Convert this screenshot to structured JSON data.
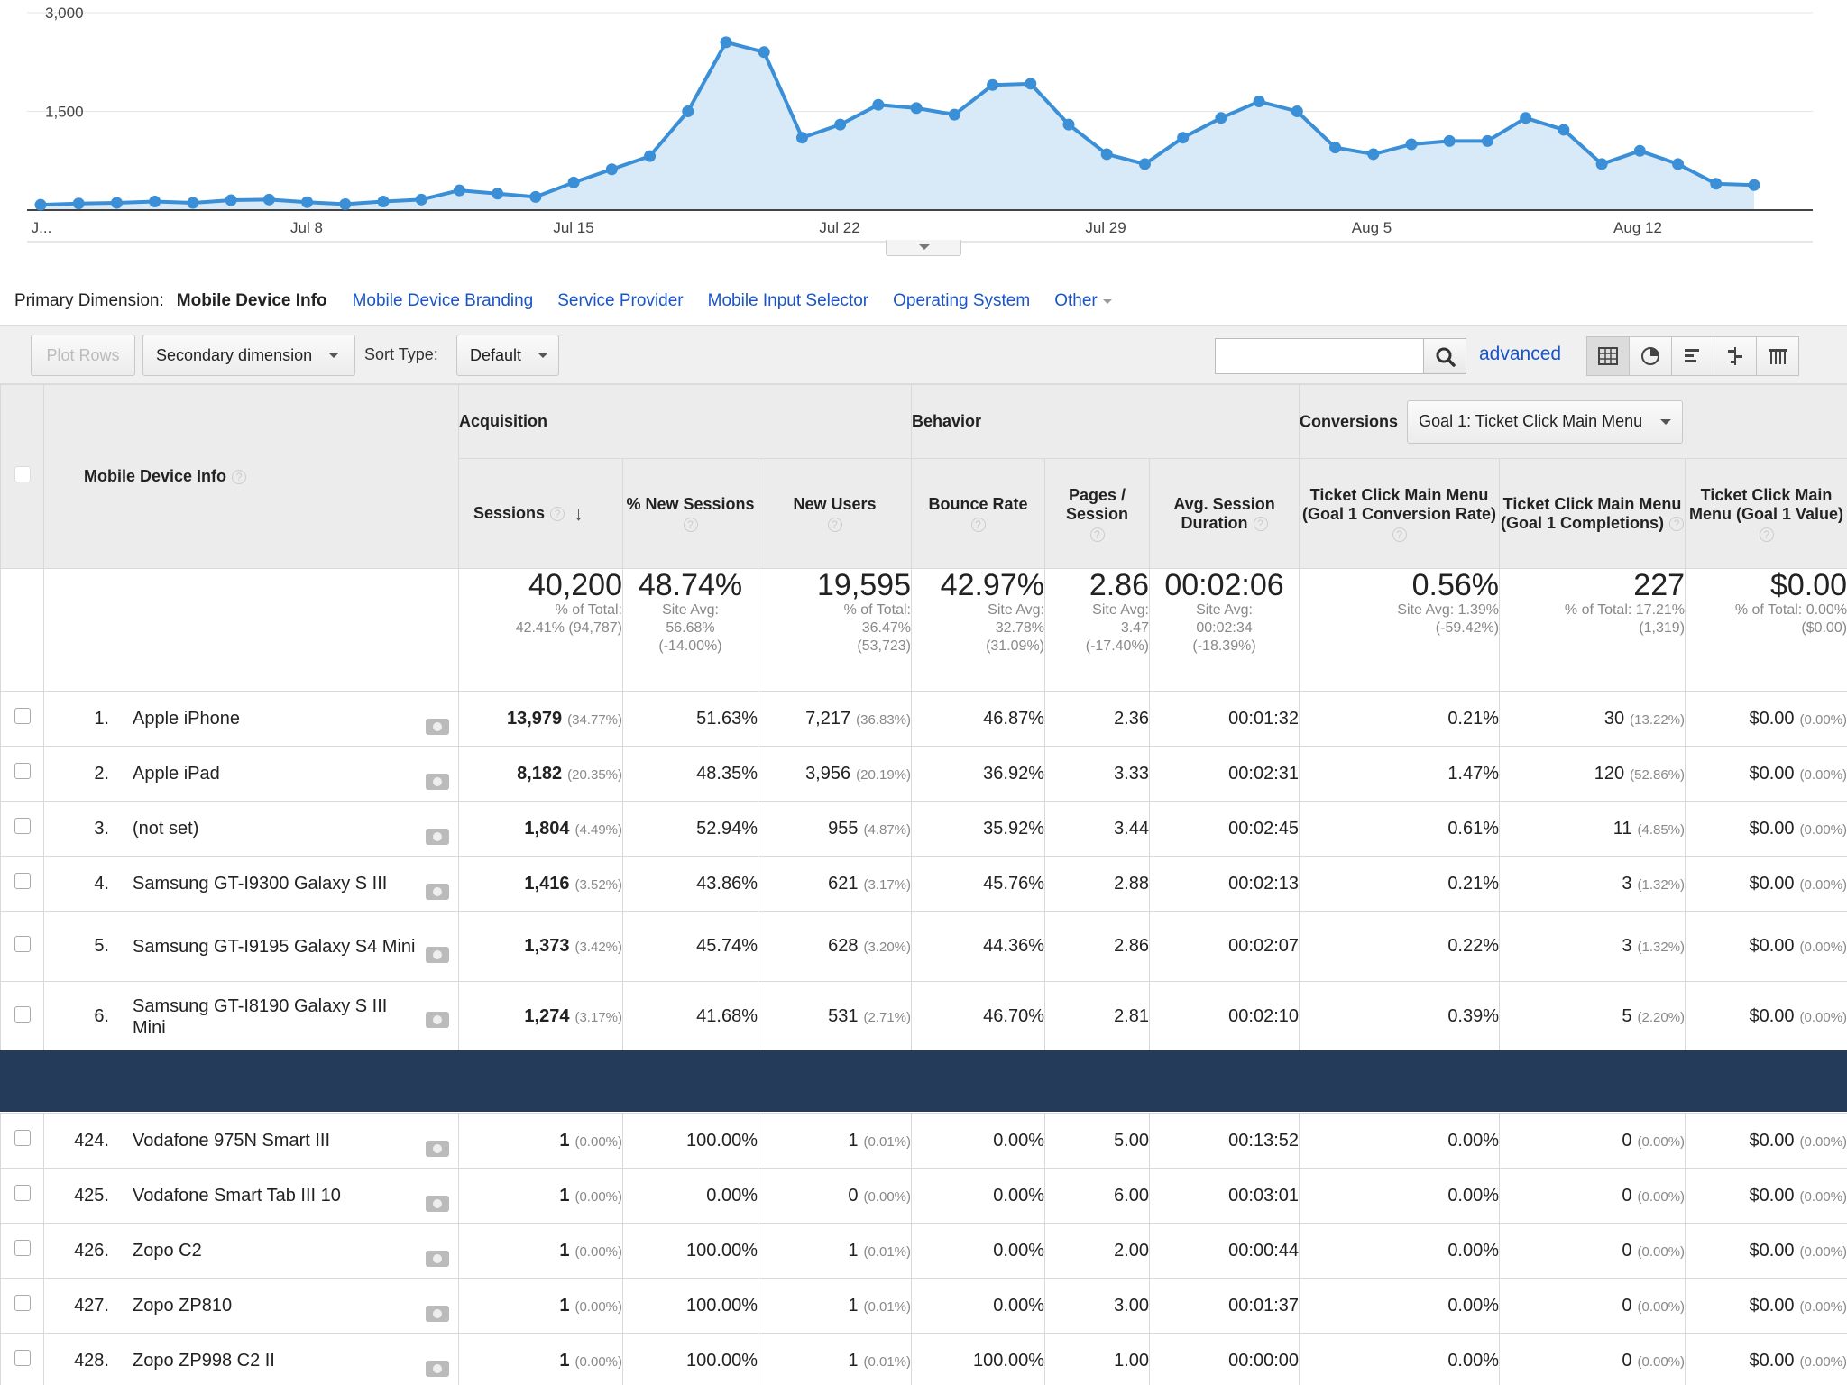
{
  "chart": {
    "y_ticks": [
      "3,000",
      "1,500"
    ],
    "x_labels": [
      "J...",
      "Jul 8",
      "Jul 15",
      "Jul 22",
      "Jul 29",
      "Aug 5",
      "Aug 12"
    ],
    "series": [
      80,
      100,
      110,
      130,
      110,
      150,
      160,
      120,
      90,
      130,
      160,
      300,
      250,
      200,
      420,
      620,
      820,
      1500,
      2550,
      2400,
      1100,
      1300,
      1600,
      1550,
      1450,
      1900,
      1920,
      1300,
      850,
      700,
      1100,
      1400,
      1650,
      1500,
      950,
      850,
      1000,
      1050,
      1050,
      1400,
      1220,
      700,
      900,
      700,
      400,
      380
    ],
    "line_color": "#3a8fd6",
    "fill_color": "#d8eaf8"
  },
  "primary_dimension": {
    "label": "Primary Dimension:",
    "active": "Mobile Device Info",
    "links": [
      "Mobile Device Branding",
      "Service Provider",
      "Mobile Input Selector",
      "Operating System"
    ],
    "other": "Other"
  },
  "toolbar": {
    "plot_rows": "Plot Rows",
    "secondary_dimension": "Secondary dimension",
    "sort_type_label": "Sort Type:",
    "sort_type_value": "Default",
    "search_placeholder": "",
    "advanced": "advanced",
    "view_icons": [
      "table-view-icon",
      "pie-view-icon",
      "performance-view-icon",
      "comparison-view-icon",
      "pivot-view-icon"
    ]
  },
  "table": {
    "dim_header": "Mobile Device Info",
    "groups": {
      "acquisition": "Acquisition",
      "behavior": "Behavior",
      "conversions": "Conversions",
      "goal_select": "Goal 1: Ticket Click Main Menu"
    },
    "columns": {
      "sessions": "Sessions",
      "pct_new": "% New Sessions",
      "new_users": "New Users",
      "bounce": "Bounce Rate",
      "pages": "Pages / Session",
      "avg_dur": "Avg. Session Duration",
      "conv_rate": "Ticket Click Main Menu (Goal 1 Conversion Rate)",
      "completions": "Ticket Click Main Menu (Goal 1 Completions)",
      "value": "Ticket Click Main Menu (Goal 1 Value)"
    },
    "totals": {
      "sessions": {
        "big": "40,200",
        "l1": "% of Total:",
        "l2": "42.41% (94,787)"
      },
      "pct_new": {
        "big": "48.74%",
        "l1": "Site Avg:",
        "l2": "56.68%",
        "l3": "(-14.00%)"
      },
      "new_users": {
        "big": "19,595",
        "l1": "% of Total:",
        "l2": "36.47%",
        "l3": "(53,723)"
      },
      "bounce": {
        "big": "42.97%",
        "l1": "Site Avg:",
        "l2": "32.78%",
        "l3": "(31.09%)"
      },
      "pages": {
        "big": "2.86",
        "l1": "Site Avg:",
        "l2": "3.47",
        "l3": "(-17.40%)"
      },
      "avg_dur": {
        "big": "00:02:06",
        "l1": "Site Avg:",
        "l2": "00:02:34",
        "l3": "(-18.39%)"
      },
      "conv_rate": {
        "big": "0.56%",
        "l1": "Site Avg: 1.39%",
        "l2": "(-59.42%)"
      },
      "completions": {
        "big": "227",
        "l1": "% of Total: 17.21%",
        "l2": "(1,319)"
      },
      "value": {
        "big": "$0.00",
        "l1": "% of Total: 0.00%",
        "l2": "($0.00)"
      }
    },
    "rows_top": [
      {
        "rank": "1.",
        "name": "Apple iPhone",
        "sessions": "13,979",
        "sessions_pct": "(34.77%)",
        "pct_new": "51.63%",
        "new_users": "7,217",
        "new_users_pct": "(36.83%)",
        "bounce": "46.87%",
        "pages": "2.36",
        "avg_dur": "00:01:32",
        "conv_rate": "0.21%",
        "completions": "30",
        "completions_pct": "(13.22%)",
        "value": "$0.00",
        "value_pct": "(0.00%)"
      },
      {
        "rank": "2.",
        "name": "Apple iPad",
        "sessions": "8,182",
        "sessions_pct": "(20.35%)",
        "pct_new": "48.35%",
        "new_users": "3,956",
        "new_users_pct": "(20.19%)",
        "bounce": "36.92%",
        "pages": "3.33",
        "avg_dur": "00:02:31",
        "conv_rate": "1.47%",
        "completions": "120",
        "completions_pct": "(52.86%)",
        "value": "$0.00",
        "value_pct": "(0.00%)"
      },
      {
        "rank": "3.",
        "name": "(not set)",
        "sessions": "1,804",
        "sessions_pct": "(4.49%)",
        "pct_new": "52.94%",
        "new_users": "955",
        "new_users_pct": "(4.87%)",
        "bounce": "35.92%",
        "pages": "3.44",
        "avg_dur": "00:02:45",
        "conv_rate": "0.61%",
        "completions": "11",
        "completions_pct": "(4.85%)",
        "value": "$0.00",
        "value_pct": "(0.00%)"
      },
      {
        "rank": "4.",
        "name": "Samsung GT-I9300 Galaxy S III",
        "sessions": "1,416",
        "sessions_pct": "(3.52%)",
        "pct_new": "43.86%",
        "new_users": "621",
        "new_users_pct": "(3.17%)",
        "bounce": "45.76%",
        "pages": "2.88",
        "avg_dur": "00:02:13",
        "conv_rate": "0.21%",
        "completions": "3",
        "completions_pct": "(1.32%)",
        "value": "$0.00",
        "value_pct": "(0.00%)"
      },
      {
        "rank": "5.",
        "name": "Samsung GT-I9195 Galaxy S4 Mini",
        "sessions": "1,373",
        "sessions_pct": "(3.42%)",
        "pct_new": "45.74%",
        "new_users": "628",
        "new_users_pct": "(3.20%)",
        "bounce": "44.36%",
        "pages": "2.86",
        "avg_dur": "00:02:07",
        "conv_rate": "0.22%",
        "completions": "3",
        "completions_pct": "(1.32%)",
        "value": "$0.00",
        "value_pct": "(0.00%)"
      },
      {
        "rank": "6.",
        "name": "Samsung GT-I8190 Galaxy S III Mini",
        "sessions": "1,274",
        "sessions_pct": "(3.17%)",
        "pct_new": "41.68%",
        "new_users": "531",
        "new_users_pct": "(2.71%)",
        "bounce": "46.70%",
        "pages": "2.81",
        "avg_dur": "00:02:10",
        "conv_rate": "0.39%",
        "completions": "5",
        "completions_pct": "(2.20%)",
        "value": "$0.00",
        "value_pct": "(0.00%)"
      }
    ],
    "rows_bottom": [
      {
        "rank": "424.",
        "name": "Vodafone 975N Smart III",
        "sessions": "1",
        "sessions_pct": "(0.00%)",
        "pct_new": "100.00%",
        "new_users": "1",
        "new_users_pct": "(0.01%)",
        "bounce": "0.00%",
        "pages": "5.00",
        "avg_dur": "00:13:52",
        "conv_rate": "0.00%",
        "completions": "0",
        "completions_pct": "(0.00%)",
        "value": "$0.00",
        "value_pct": "(0.00%)"
      },
      {
        "rank": "425.",
        "name": "Vodafone Smart Tab III 10",
        "sessions": "1",
        "sessions_pct": "(0.00%)",
        "pct_new": "0.00%",
        "new_users": "0",
        "new_users_pct": "(0.00%)",
        "bounce": "0.00%",
        "pages": "6.00",
        "avg_dur": "00:03:01",
        "conv_rate": "0.00%",
        "completions": "0",
        "completions_pct": "(0.00%)",
        "value": "$0.00",
        "value_pct": "(0.00%)"
      },
      {
        "rank": "426.",
        "name": "Zopo C2",
        "sessions": "1",
        "sessions_pct": "(0.00%)",
        "pct_new": "100.00%",
        "new_users": "1",
        "new_users_pct": "(0.01%)",
        "bounce": "0.00%",
        "pages": "2.00",
        "avg_dur": "00:00:44",
        "conv_rate": "0.00%",
        "completions": "0",
        "completions_pct": "(0.00%)",
        "value": "$0.00",
        "value_pct": "(0.00%)"
      },
      {
        "rank": "427.",
        "name": "Zopo ZP810",
        "sessions": "1",
        "sessions_pct": "(0.00%)",
        "pct_new": "100.00%",
        "new_users": "1",
        "new_users_pct": "(0.01%)",
        "bounce": "0.00%",
        "pages": "3.00",
        "avg_dur": "00:01:37",
        "conv_rate": "0.00%",
        "completions": "0",
        "completions_pct": "(0.00%)",
        "value": "$0.00",
        "value_pct": "(0.00%)"
      },
      {
        "rank": "428.",
        "name": "Zopo ZP998 C2 II",
        "sessions": "1",
        "sessions_pct": "(0.00%)",
        "pct_new": "100.00%",
        "new_users": "1",
        "new_users_pct": "(0.01%)",
        "bounce": "100.00%",
        "pages": "1.00",
        "avg_dur": "00:00:00",
        "conv_rate": "0.00%",
        "completions": "0",
        "completions_pct": "(0.00%)",
        "value": "$0.00",
        "value_pct": "(0.00%)"
      }
    ]
  }
}
